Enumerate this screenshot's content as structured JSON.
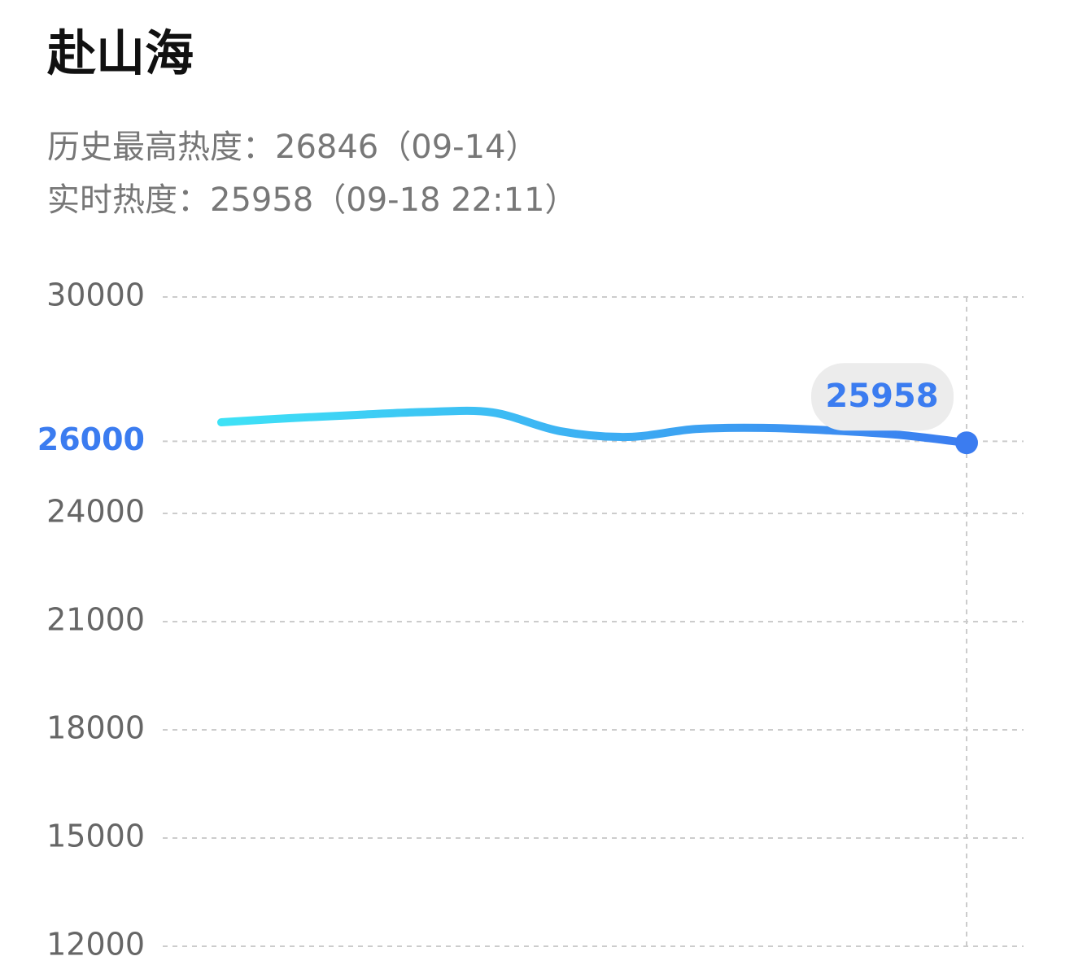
{
  "header": {
    "title": "赴山海",
    "peak": "历史最高热度：26846（09-14）",
    "realtime": "实时热度：25958（09-18 22:11）"
  },
  "chart_data": {
    "type": "line",
    "categories": [
      null,
      null,
      null,
      null,
      null,
      null,
      null,
      null,
      null,
      null,
      null,
      null
    ],
    "series": [
      {
        "color": "#3b7cf0",
        "values": [
          26526,
          26640,
          26730,
          26810,
          26800,
          26280,
          26120,
          26340,
          26370,
          26300,
          26180,
          25958
        ]
      }
    ],
    "ylim": [
      12000,
      30000
    ],
    "yticks": [
      12000,
      15000,
      18000,
      21000,
      24000,
      26000,
      30000
    ],
    "grid": true
  }
}
